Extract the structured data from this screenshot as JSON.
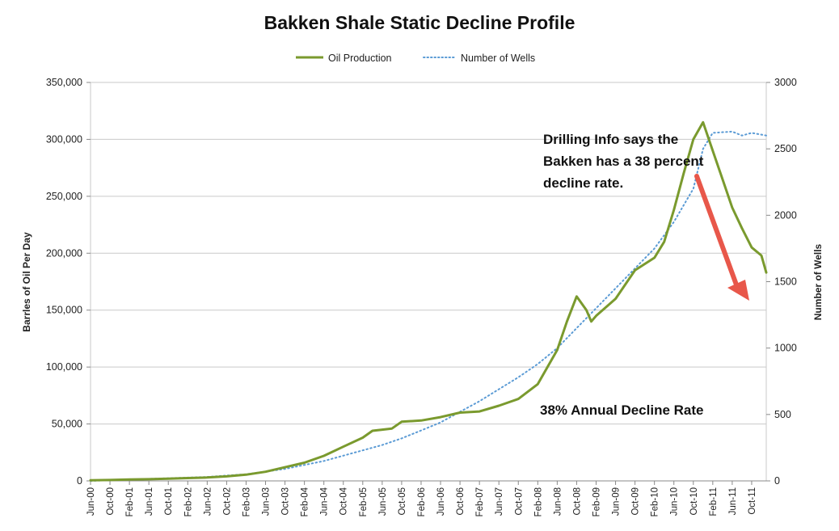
{
  "chart_data": {
    "type": "line",
    "title": "Bakken Shale Static Decline Profile",
    "ylabel": "Barrles of Oil Per Day",
    "y2label": "Number of Wells",
    "ylim": [
      0,
      350000
    ],
    "y2lim": [
      0,
      3000
    ],
    "yticks": [
      "0",
      "50,000",
      "100,000",
      "150,000",
      "200,000",
      "250,000",
      "300,000",
      "350,000"
    ],
    "y2ticks": [
      "0",
      "500",
      "1000",
      "1500",
      "2000",
      "2500",
      "3000"
    ],
    "xticks": [
      "Jun-00",
      "Oct-00",
      "Feb-01",
      "Jun-01",
      "Oct-01",
      "Feb-02",
      "Jun-02",
      "Oct-02",
      "Feb-03",
      "Jun-03",
      "Oct-03",
      "Feb-04",
      "Jun-04",
      "Oct-04",
      "Feb-05",
      "Jun-05",
      "Oct-05",
      "Feb-06",
      "Jun-06",
      "Oct-06",
      "Feb-07",
      "Jun-07",
      "Oct-07",
      "Feb-08",
      "Jun-08",
      "Oct-08",
      "Feb-09",
      "Jun-09",
      "Oct-09",
      "Feb-10",
      "Jun-10",
      "Oct-10",
      "Feb-11",
      "Jun-11",
      "Oct-11"
    ],
    "grid": true,
    "legend_position": "top",
    "series": [
      {
        "name": "Oil Production",
        "axis": "left",
        "color": "#7a9a2e",
        "style": "solid",
        "points": [
          [
            "Jun-00",
            500
          ],
          [
            "Oct-00",
            800
          ],
          [
            "Feb-01",
            1200
          ],
          [
            "Jun-01",
            1500
          ],
          [
            "Oct-01",
            2000
          ],
          [
            "Feb-02",
            2500
          ],
          [
            "Jun-02",
            3000
          ],
          [
            "Oct-02",
            4000
          ],
          [
            "Feb-03",
            5500
          ],
          [
            "Jun-03",
            8000
          ],
          [
            "Oct-03",
            12000
          ],
          [
            "Feb-04",
            16000
          ],
          [
            "Jun-04",
            22000
          ],
          [
            "Oct-04",
            30000
          ],
          [
            "Feb-05",
            38000
          ],
          [
            "Apr-05",
            44000
          ],
          [
            "Jun-05",
            45000
          ],
          [
            "Aug-05",
            46000
          ],
          [
            "Oct-05",
            52000
          ],
          [
            "Feb-06",
            53000
          ],
          [
            "Jun-06",
            56000
          ],
          [
            "Oct-06",
            60000
          ],
          [
            "Feb-07",
            61000
          ],
          [
            "Jun-07",
            66000
          ],
          [
            "Oct-07",
            72000
          ],
          [
            "Feb-08",
            85000
          ],
          [
            "Jun-08",
            115000
          ],
          [
            "Aug-08",
            140000
          ],
          [
            "Oct-08",
            162000
          ],
          [
            "Dec-08",
            150000
          ],
          [
            "Jan-09",
            140000
          ],
          [
            "Feb-09",
            145000
          ],
          [
            "Jun-09",
            160000
          ],
          [
            "Oct-09",
            185000
          ],
          [
            "Feb-10",
            196000
          ],
          [
            "Apr-10",
            210000
          ],
          [
            "Jun-10",
            238000
          ],
          [
            "Aug-10",
            270000
          ],
          [
            "Oct-10",
            300000
          ],
          [
            "Dec-10",
            315000
          ],
          [
            "Feb-11",
            290000
          ],
          [
            "Apr-11",
            265000
          ],
          [
            "Jun-11",
            240000
          ],
          [
            "Aug-11",
            222000
          ],
          [
            "Oct-11",
            205000
          ],
          [
            "Dec-11",
            198000
          ],
          [
            "Jan-12",
            183000
          ]
        ]
      },
      {
        "name": "Number of Wells",
        "axis": "right",
        "color": "#5b9bd5",
        "style": "dotted",
        "points": [
          [
            "Jun-00",
            0
          ],
          [
            "Oct-00",
            5
          ],
          [
            "Feb-01",
            10
          ],
          [
            "Jun-01",
            15
          ],
          [
            "Oct-01",
            20
          ],
          [
            "Feb-02",
            25
          ],
          [
            "Jun-02",
            30
          ],
          [
            "Oct-02",
            40
          ],
          [
            "Feb-03",
            50
          ],
          [
            "Jun-03",
            70
          ],
          [
            "Oct-03",
            90
          ],
          [
            "Feb-04",
            120
          ],
          [
            "Jun-04",
            150
          ],
          [
            "Oct-04",
            190
          ],
          [
            "Feb-05",
            230
          ],
          [
            "Jun-05",
            270
          ],
          [
            "Oct-05",
            320
          ],
          [
            "Feb-06",
            380
          ],
          [
            "Jun-06",
            440
          ],
          [
            "Oct-06",
            520
          ],
          [
            "Feb-07",
            600
          ],
          [
            "Jun-07",
            690
          ],
          [
            "Oct-07",
            780
          ],
          [
            "Feb-08",
            880
          ],
          [
            "Jun-08",
            1000
          ],
          [
            "Oct-08",
            1150
          ],
          [
            "Feb-09",
            1300
          ],
          [
            "Jun-09",
            1450
          ],
          [
            "Oct-09",
            1600
          ],
          [
            "Feb-10",
            1750
          ],
          [
            "Jun-10",
            1950
          ],
          [
            "Oct-10",
            2200
          ],
          [
            "Dec-10",
            2500
          ],
          [
            "Feb-11",
            2620
          ],
          [
            "Jun-11",
            2630
          ],
          [
            "Aug-11",
            2600
          ],
          [
            "Oct-11",
            2620
          ],
          [
            "Jan-12",
            2600
          ]
        ]
      }
    ],
    "annotations": [
      {
        "id": "drilling-info",
        "lines": [
          "Drilling Info says the",
          "Bakken has a 38 percent",
          "decline rate."
        ]
      },
      {
        "id": "decline-rate",
        "lines": [
          "38% Annual Decline Rate"
        ]
      }
    ],
    "arrow_color": "#e8574a"
  }
}
